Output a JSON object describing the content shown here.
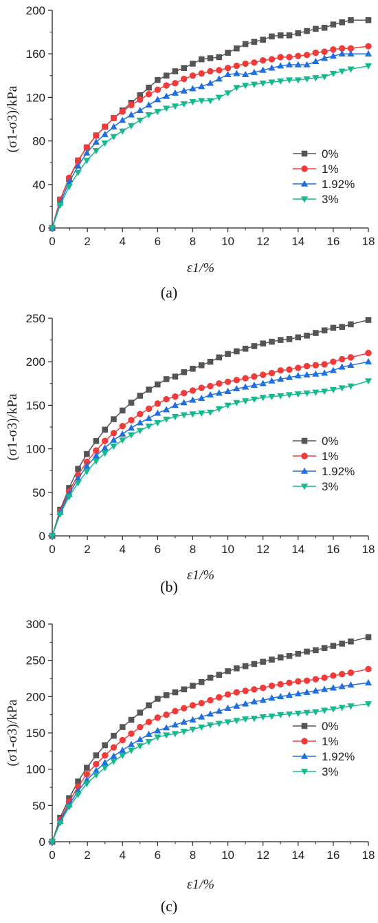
{
  "panel_labels": [
    "(a)",
    "(b)",
    "(c)"
  ],
  "legend_labels": [
    "0%",
    "1%",
    "1.92%",
    "3%"
  ],
  "series_colors": [
    "#555555",
    "#f03b3b",
    "#1f6fe0",
    "#15b98e"
  ],
  "series_markers": [
    "square",
    "circle",
    "triangle-up",
    "triangle-down"
  ],
  "chart_data": [
    {
      "type": "line",
      "panel": "(a)",
      "xlabel": "ε1/%",
      "ylabel": "(σ1-σ3)/kPa",
      "xlim": [
        0,
        18
      ],
      "ylim": [
        0,
        200
      ],
      "xticks": [
        0,
        2,
        4,
        6,
        8,
        10,
        12,
        14,
        16,
        18
      ],
      "yticks": [
        0,
        40,
        80,
        120,
        160,
        200
      ],
      "legend_position": "center-right",
      "grid": false,
      "x": [
        0,
        0.45,
        0.96,
        1.47,
        1.97,
        2.5,
        3.0,
        3.5,
        4.0,
        4.5,
        5.0,
        5.5,
        6.0,
        6.5,
        7.0,
        7.5,
        8.0,
        8.5,
        9.0,
        9.5,
        10.0,
        10.5,
        11.0,
        11.5,
        12.0,
        12.5,
        13.0,
        13.5,
        14.0,
        14.5,
        15.0,
        15.5,
        16.0,
        16.5,
        17.0,
        18.0
      ],
      "series": [
        {
          "name": "0%",
          "values": [
            0,
            26,
            45,
            62,
            74,
            85,
            93,
            101,
            108,
            115,
            122,
            129,
            136,
            140,
            144,
            147,
            151,
            155,
            156,
            157,
            161,
            165,
            169,
            171,
            173,
            176,
            177,
            177,
            179,
            181,
            183,
            184,
            187,
            189,
            191,
            191
          ]
        },
        {
          "name": "1%",
          "values": [
            0,
            26,
            46,
            62,
            74,
            85,
            93,
            101,
            107,
            113,
            118,
            123,
            127,
            131,
            133,
            137,
            140,
            142,
            144,
            145,
            147,
            149,
            151,
            152,
            154,
            155,
            157,
            157,
            158,
            159,
            161,
            162,
            164,
            165,
            165,
            167
          ]
        },
        {
          "name": "1.92%",
          "values": [
            0,
            23,
            42,
            57,
            69,
            79,
            86,
            93,
            99,
            104,
            108,
            113,
            118,
            121,
            124,
            126,
            128,
            130,
            133,
            137,
            141,
            142,
            141,
            143,
            145,
            147,
            149,
            150,
            150,
            150,
            153,
            156,
            158,
            160,
            160,
            160
          ]
        },
        {
          "name": "3%",
          "values": [
            0,
            21,
            38,
            51,
            62,
            71,
            78,
            84,
            89,
            94,
            99,
            104,
            107,
            110,
            112,
            114,
            116,
            117,
            117,
            120,
            124,
            129,
            131,
            132,
            133,
            134,
            135,
            136,
            136,
            137,
            138,
            139,
            142,
            144,
            146,
            149
          ]
        }
      ]
    },
    {
      "type": "line",
      "panel": "(b)",
      "xlabel": "ε1/%",
      "ylabel": "(σ1-σ3)/kPa",
      "xlim": [
        0,
        18
      ],
      "ylim": [
        0,
        250
      ],
      "xticks": [
        0,
        2,
        4,
        6,
        8,
        10,
        12,
        14,
        16,
        18
      ],
      "yticks": [
        0,
        50,
        100,
        150,
        200,
        250
      ],
      "legend_position": "center-right",
      "grid": false,
      "x": [
        0,
        0.45,
        0.96,
        1.47,
        1.97,
        2.5,
        3.0,
        3.5,
        4.0,
        4.5,
        5.0,
        5.5,
        6.0,
        6.5,
        7.0,
        7.5,
        8.0,
        8.5,
        9.0,
        9.5,
        10.0,
        10.5,
        11.0,
        11.5,
        12.0,
        12.5,
        13.0,
        13.5,
        14.0,
        14.5,
        15.0,
        15.5,
        16.0,
        16.5,
        17.0,
        18.0
      ],
      "series": [
        {
          "name": "0%",
          "values": [
            0,
            30,
            55,
            77,
            94,
            109,
            122,
            134,
            144,
            153,
            161,
            168,
            174,
            180,
            183,
            188,
            192,
            196,
            200,
            205,
            209,
            212,
            215,
            218,
            221,
            223,
            225,
            226,
            228,
            230,
            233,
            236,
            239,
            240,
            243,
            248
          ]
        },
        {
          "name": "1%",
          "values": [
            0,
            28,
            51,
            70,
            85,
            98,
            109,
            118,
            126,
            133,
            140,
            146,
            152,
            157,
            160,
            164,
            167,
            170,
            172,
            175,
            177,
            179,
            181,
            183,
            185,
            187,
            190,
            191,
            193,
            195,
            196,
            197,
            200,
            203,
            205,
            210
          ]
        },
        {
          "name": "1.92%",
          "values": [
            0,
            27,
            48,
            66,
            80,
            92,
            101,
            110,
            117,
            124,
            130,
            135,
            141,
            145,
            150,
            153,
            156,
            158,
            162,
            164,
            166,
            169,
            171,
            173,
            175,
            178,
            180,
            182,
            184,
            185,
            186,
            187,
            190,
            194,
            196,
            200
          ]
        },
        {
          "name": "3%",
          "values": [
            0,
            25,
            45,
            61,
            74,
            86,
            95,
            103,
            110,
            116,
            121,
            126,
            130,
            134,
            137,
            139,
            140,
            141,
            142,
            146,
            150,
            153,
            155,
            157,
            159,
            160,
            161,
            162,
            163,
            164,
            165,
            166,
            168,
            170,
            172,
            178
          ]
        }
      ]
    },
    {
      "type": "line",
      "panel": "(c)",
      "xlabel": "ε1/%",
      "ylabel": "(σ1-σ3)/kPa",
      "xlim": [
        0,
        18
      ],
      "ylim": [
        0,
        300
      ],
      "xticks": [
        0,
        2,
        4,
        6,
        8,
        10,
        12,
        14,
        16,
        18
      ],
      "yticks": [
        0,
        50,
        100,
        150,
        200,
        250,
        300
      ],
      "legend_position": "lower-right",
      "grid": false,
      "x": [
        0,
        0.45,
        0.96,
        1.47,
        1.97,
        2.5,
        3.0,
        3.5,
        4.0,
        4.5,
        5.0,
        5.5,
        6.0,
        6.5,
        7.0,
        7.5,
        8.0,
        8.5,
        9.0,
        9.5,
        10.0,
        10.5,
        11.0,
        11.5,
        12.0,
        12.5,
        13.0,
        13.5,
        14.0,
        14.5,
        15.0,
        15.5,
        16.0,
        16.5,
        17.0,
        18.0
      ],
      "series": [
        {
          "name": "0%",
          "values": [
            0,
            33,
            60,
            83,
            102,
            119,
            133,
            146,
            158,
            168,
            178,
            188,
            197,
            202,
            206,
            210,
            215,
            220,
            226,
            230,
            235,
            239,
            242,
            245,
            248,
            251,
            254,
            256,
            259,
            262,
            264,
            267,
            270,
            273,
            276,
            282
          ]
        },
        {
          "name": "1%",
          "values": [
            0,
            30,
            55,
            76,
            93,
            107,
            119,
            130,
            140,
            149,
            158,
            165,
            171,
            175,
            180,
            184,
            188,
            191,
            195,
            199,
            203,
            206,
            208,
            210,
            212,
            215,
            217,
            219,
            221,
            222,
            224,
            226,
            229,
            231,
            233,
            238
          ]
        },
        {
          "name": "1.92%",
          "values": [
            0,
            28,
            51,
            70,
            85,
            98,
            109,
            118,
            126,
            134,
            141,
            148,
            153,
            157,
            161,
            165,
            168,
            172,
            176,
            180,
            184,
            187,
            190,
            193,
            195,
            198,
            200,
            202,
            204,
            206,
            208,
            210,
            212,
            214,
            216,
            219
          ]
        },
        {
          "name": "3%",
          "values": [
            0,
            26,
            48,
            65,
            80,
            92,
            102,
            111,
            119,
            126,
            132,
            138,
            144,
            147,
            149,
            152,
            155,
            158,
            161,
            163,
            165,
            167,
            169,
            170,
            172,
            173,
            175,
            176,
            177,
            178,
            179,
            181,
            183,
            185,
            187,
            190
          ]
        }
      ]
    }
  ]
}
